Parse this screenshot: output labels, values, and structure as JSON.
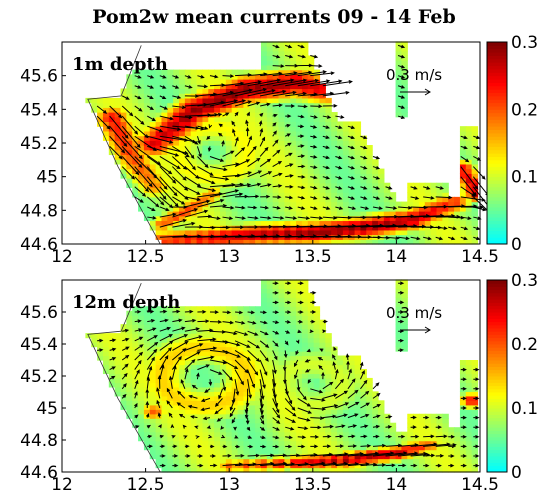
{
  "figure": {
    "title": "Pom2w mean currents 09 - 14 Feb"
  },
  "colors": {
    "ramp": [
      "#00ffff",
      "#80ff80",
      "#ffff00",
      "#ff8000",
      "#ff0000",
      "#800000"
    ],
    "coast": "#333333",
    "arrows": "#000000"
  },
  "chart_data": [
    {
      "type": "heatmap",
      "title": "1m depth",
      "xlabel": "",
      "ylabel": "",
      "xlim": [
        12,
        14.5
      ],
      "ylim": [
        44.6,
        45.8
      ],
      "x_ticks": [
        "12",
        "12.5",
        "13",
        "13.5",
        "14",
        "14.5"
      ],
      "y_ticks": [
        "44.6",
        "44.8",
        "45",
        "45.2",
        "45.4",
        "45.6"
      ],
      "colorbar": {
        "ticks": [
          "0",
          "0.1",
          "0.2",
          "0.3"
        ],
        "range": [
          0,
          0.3
        ]
      },
      "reference_vector": {
        "label": "0.3 m/s",
        "value": 0.3
      },
      "features": [
        {
          "kind": "jet",
          "lon": [
            12.55,
            12.8,
            13.1,
            13.4,
            13.65
          ],
          "lat": [
            45.2,
            45.4,
            45.52,
            45.56,
            45.5
          ],
          "speed": [
            0.26,
            0.3,
            0.3,
            0.28,
            0.24
          ],
          "width": 0.09
        },
        {
          "kind": "jet",
          "lon": [
            12.3,
            12.4,
            12.55
          ],
          "lat": [
            45.35,
            45.15,
            44.95
          ],
          "speed": [
            0.24,
            0.22,
            0.18
          ],
          "width": 0.08
        },
        {
          "kind": "jet",
          "lon": [
            12.6,
            12.9,
            13.2,
            13.5,
            13.8,
            14.1,
            14.35
          ],
          "lat": [
            44.62,
            44.64,
            44.66,
            44.67,
            44.7,
            44.75,
            44.85
          ],
          "speed": [
            0.22,
            0.26,
            0.28,
            0.3,
            0.3,
            0.28,
            0.22
          ],
          "width": 0.07
        },
        {
          "kind": "jet",
          "lon": [
            12.6,
            12.75,
            12.9
          ],
          "lat": [
            44.72,
            44.8,
            44.9
          ],
          "speed": [
            0.2,
            0.22,
            0.18
          ],
          "width": 0.05
        },
        {
          "kind": "jet",
          "lon": [
            14.4,
            14.48
          ],
          "lat": [
            45.05,
            44.9
          ],
          "speed": [
            0.25,
            0.28
          ],
          "width": 0.05
        }
      ],
      "flow": [
        {
          "kind": "gyre",
          "lon": 12.9,
          "lat": 45.15,
          "radius": 0.35,
          "speed": 0.12,
          "sense": "cyclonic"
        },
        {
          "kind": "drift",
          "u": 0.06,
          "v": -0.02
        }
      ]
    },
    {
      "type": "heatmap",
      "title": "12m depth",
      "xlabel": "",
      "ylabel": "",
      "xlim": [
        12,
        14.5
      ],
      "ylim": [
        44.6,
        45.8
      ],
      "x_ticks": [
        "12",
        "12.5",
        "13",
        "13.5",
        "14",
        "14.5"
      ],
      "y_ticks": [
        "44.6",
        "44.8",
        "45",
        "45.2",
        "45.4",
        "45.6"
      ],
      "colorbar": {
        "ticks": [
          "0",
          "0.1",
          "0.2",
          "0.3"
        ],
        "range": [
          0,
          0.3
        ]
      },
      "reference_vector": {
        "label": "0.3 m/s",
        "value": 0.3
      },
      "features": [
        {
          "kind": "jet",
          "lon": [
            13.0,
            13.4,
            13.7,
            14.0,
            14.2
          ],
          "lat": [
            44.64,
            44.66,
            44.68,
            44.72,
            44.77
          ],
          "speed": [
            0.2,
            0.26,
            0.3,
            0.28,
            0.2
          ],
          "width": 0.05
        },
        {
          "kind": "spot",
          "lon": [
            12.55
          ],
          "lat": [
            44.98
          ],
          "speed": [
            0.2
          ],
          "width": 0.06
        },
        {
          "kind": "spot",
          "lon": [
            14.45
          ],
          "lat": [
            45.05
          ],
          "speed": [
            0.25
          ],
          "width": 0.05
        }
      ],
      "flow": [
        {
          "kind": "gyre",
          "lon": 12.85,
          "lat": 45.2,
          "radius": 0.42,
          "speed": 0.14,
          "sense": "anticyclonic"
        },
        {
          "kind": "gyre",
          "lon": 13.5,
          "lat": 45.15,
          "radius": 0.3,
          "speed": 0.1,
          "sense": "cyclonic"
        },
        {
          "kind": "drift",
          "u": 0.05,
          "v": 0.0
        }
      ]
    }
  ]
}
